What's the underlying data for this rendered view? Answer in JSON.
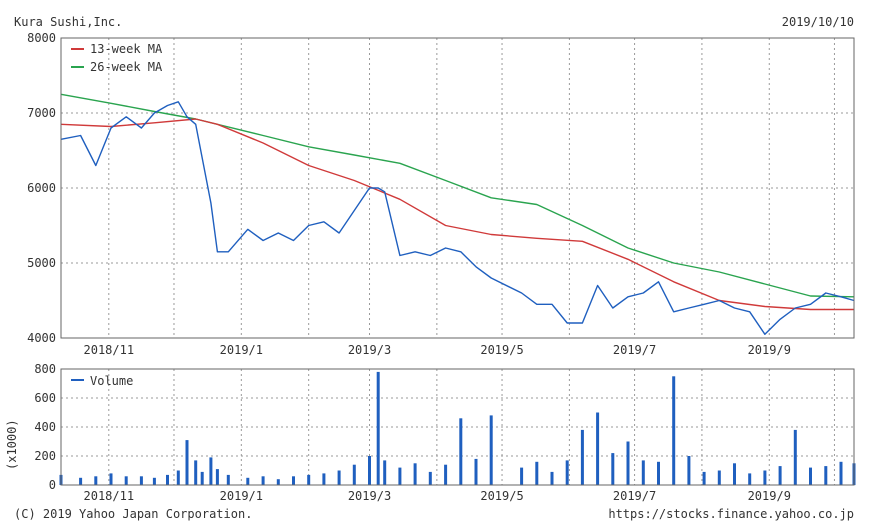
{
  "header": {
    "company": "Kura Sushi,Inc.",
    "date": "2019/10/10"
  },
  "footer": {
    "copyright": "(C) 2019 Yahoo Japan Corporation.",
    "url": "https://stocks.finance.yahoo.co.jp"
  },
  "colors": {
    "price": "#1f5fbf",
    "ma13": "#d03a3a",
    "ma26": "#2aa44f",
    "volume": "#1f5fbf",
    "grid": "#9a9a9a"
  },
  "chart_data": [
    {
      "type": "line",
      "title": "Kura Sushi,Inc.",
      "ylim": [
        4000,
        8000
      ],
      "yticks": [
        4000,
        5000,
        6000,
        7000,
        8000
      ],
      "xtick_labels": [
        "2018/11",
        "2019/1",
        "2019/3",
        "2019/5",
        "2019/7",
        "2019/9"
      ],
      "legend": {
        "placement": "top-left",
        "entries": [
          "13-week MA",
          "26-week MA"
        ]
      },
      "grid": true,
      "series": [
        {
          "name": "Price",
          "color": "#1f5fbf",
          "x": [
            "2018/10/10",
            "2018/10/19",
            "2018/10/26",
            "2018/11/02",
            "2018/11/09",
            "2018/11/16",
            "2018/11/22",
            "2018/11/28",
            "2018/12/03",
            "2018/12/07",
            "2018/12/11",
            "2018/12/14",
            "2018/12/18",
            "2018/12/21",
            "2018/12/26",
            "2019/01/04",
            "2019/01/11",
            "2019/01/18",
            "2019/01/25",
            "2019/02/01",
            "2019/02/08",
            "2019/02/15",
            "2019/02/22",
            "2019/03/01",
            "2019/03/05",
            "2019/03/08",
            "2019/03/15",
            "2019/03/22",
            "2019/03/29",
            "2019/04/05",
            "2019/04/12",
            "2019/04/19",
            "2019/04/26",
            "2019/05/10",
            "2019/05/17",
            "2019/05/24",
            "2019/05/31",
            "2019/06/07",
            "2019/06/14",
            "2019/06/21",
            "2019/06/28",
            "2019/07/05",
            "2019/07/12",
            "2019/07/19",
            "2019/07/26",
            "2019/08/02",
            "2019/08/09",
            "2019/08/16",
            "2019/08/23",
            "2019/08/30",
            "2019/09/06",
            "2019/09/13",
            "2019/09/20",
            "2019/09/27",
            "2019/10/04",
            "2019/10/10"
          ],
          "values": [
            6650,
            6700,
            6300,
            6800,
            6950,
            6800,
            7000,
            7100,
            7150,
            6950,
            6850,
            6400,
            5800,
            5150,
            5150,
            5450,
            5300,
            5400,
            5300,
            5500,
            5550,
            5400,
            5700,
            6000,
            6000,
            5950,
            5100,
            5150,
            5100,
            5200,
            5150,
            4950,
            4800,
            4600,
            4450,
            4450,
            4200,
            4200,
            4700,
            4400,
            4550,
            4600,
            4750,
            4350,
            4400,
            4450,
            4500,
            4400,
            4350,
            4050,
            4250,
            4400,
            4450,
            4600,
            4550,
            4500
          ]
        },
        {
          "name": "13-week MA",
          "color": "#d03a3a",
          "x": [
            "2018/10/10",
            "2018/11/02",
            "2018/11/22",
            "2018/12/11",
            "2018/12/21",
            "2019/01/11",
            "2019/02/01",
            "2019/02/22",
            "2019/03/15",
            "2019/04/05",
            "2019/04/26",
            "2019/05/17",
            "2019/06/07",
            "2019/06/28",
            "2019/07/19",
            "2019/08/09",
            "2019/08/30",
            "2019/09/20",
            "2019/10/10"
          ],
          "values": [
            6850,
            6820,
            6870,
            6920,
            6850,
            6600,
            6300,
            6100,
            5850,
            5500,
            5380,
            5330,
            5290,
            5050,
            4750,
            4500,
            4420,
            4380,
            4380
          ]
        },
        {
          "name": "26-week MA",
          "color": "#2aa44f",
          "x": [
            "2018/10/10",
            "2018/11/02",
            "2018/11/22",
            "2018/12/11",
            "2019/01/11",
            "2019/02/01",
            "2019/02/22",
            "2019/03/15",
            "2019/04/05",
            "2019/04/26",
            "2019/05/17",
            "2019/06/07",
            "2019/06/28",
            "2019/07/19",
            "2019/08/09",
            "2019/08/30",
            "2019/09/20",
            "2019/10/10"
          ],
          "values": [
            7250,
            7130,
            7020,
            6920,
            6700,
            6550,
            6440,
            6330,
            6100,
            5870,
            5780,
            5500,
            5200,
            5000,
            4880,
            4720,
            4560,
            4550
          ]
        }
      ]
    },
    {
      "type": "bar",
      "ylabel": "(x1000)",
      "ylim": [
        0,
        800
      ],
      "yticks": [
        0,
        200,
        400,
        600,
        800
      ],
      "xtick_labels": [
        "2018/11",
        "2019/1",
        "2019/3",
        "2019/5",
        "2019/7",
        "2019/9"
      ],
      "legend": {
        "placement": "top-left",
        "entries": [
          "Volume"
        ]
      },
      "grid": true,
      "series": [
        {
          "name": "Volume",
          "color": "#1f5fbf",
          "x": [
            "2018/10/10",
            "2018/10/19",
            "2018/10/26",
            "2018/11/02",
            "2018/11/09",
            "2018/11/16",
            "2018/11/22",
            "2018/11/28",
            "2018/12/03",
            "2018/12/07",
            "2018/12/11",
            "2018/12/14",
            "2018/12/18",
            "2018/12/21",
            "2018/12/26",
            "2019/01/04",
            "2019/01/11",
            "2019/01/18",
            "2019/01/25",
            "2019/02/01",
            "2019/02/08",
            "2019/02/15",
            "2019/02/22",
            "2019/03/01",
            "2019/03/05",
            "2019/03/08",
            "2019/03/15",
            "2019/03/22",
            "2019/03/29",
            "2019/04/05",
            "2019/04/12",
            "2019/04/19",
            "2019/04/26",
            "2019/05/10",
            "2019/05/17",
            "2019/05/24",
            "2019/05/31",
            "2019/06/07",
            "2019/06/14",
            "2019/06/21",
            "2019/06/28",
            "2019/07/05",
            "2019/07/12",
            "2019/07/19",
            "2019/07/26",
            "2019/08/02",
            "2019/08/09",
            "2019/08/16",
            "2019/08/23",
            "2019/08/30",
            "2019/09/06",
            "2019/09/13",
            "2019/09/20",
            "2019/09/27",
            "2019/10/04",
            "2019/10/10"
          ],
          "values": [
            70,
            50,
            60,
            80,
            60,
            60,
            50,
            70,
            100,
            310,
            170,
            90,
            190,
            110,
            70,
            50,
            60,
            40,
            60,
            70,
            80,
            100,
            140,
            200,
            780,
            170,
            120,
            150,
            90,
            140,
            460,
            180,
            480,
            120,
            160,
            90,
            170,
            380,
            500,
            220,
            300,
            170,
            160,
            750,
            200,
            90,
            100,
            150,
            80,
            100,
            130,
            380,
            120,
            130,
            160,
            150
          ]
        }
      ]
    }
  ]
}
